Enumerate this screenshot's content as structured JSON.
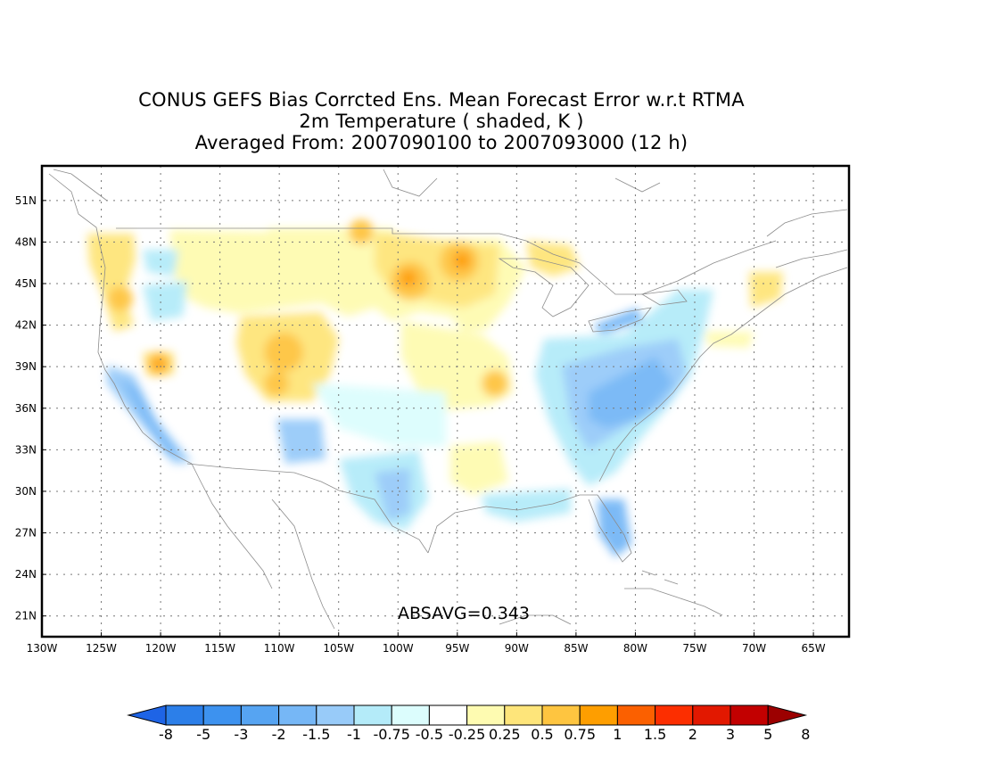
{
  "title": {
    "line1": "CONUS GEFS Bias Corrcted Ens. Mean Forecast Error w.r.t RTMA",
    "line2": "2m Temperature ( shaded, K )",
    "line3": "Averaged From: 2007090100 to 2007093000 (12 h)"
  },
  "map": {
    "lon_range": [
      -130,
      -62
    ],
    "lat_range": [
      19.5,
      53.5
    ],
    "lat_labels": [
      "51N",
      "48N",
      "45N",
      "42N",
      "39N",
      "36N",
      "33N",
      "30N",
      "27N",
      "24N",
      "21N"
    ],
    "lat_values": [
      51,
      48,
      45,
      42,
      39,
      36,
      33,
      30,
      27,
      24,
      21
    ],
    "lon_labels": [
      "130W",
      "125W",
      "120W",
      "115W",
      "110W",
      "105W",
      "100W",
      "95W",
      "90W",
      "85W",
      "80W",
      "75W",
      "70W",
      "65W"
    ],
    "lon_values": [
      -130,
      -125,
      -120,
      -115,
      -110,
      -105,
      -100,
      -95,
      -90,
      -85,
      -80,
      -75,
      -70,
      -65
    ],
    "grid": true,
    "absavg_label": "ABSAVG=0.343"
  },
  "colorbar": {
    "labels": [
      "-8",
      "-5",
      "-3",
      "-2",
      "-1.5",
      "-1",
      "-0.75",
      "-0.5",
      "-0.25",
      "0.25",
      "0.5",
      "0.75",
      "1",
      "1.5",
      "2",
      "3",
      "5",
      "8"
    ],
    "colors": [
      "#1e64e6",
      "#2c7fe9",
      "#3d92ef",
      "#56a4f2",
      "#76b7f6",
      "#98cbf9",
      "#b4ebf9",
      "#dcfdfd",
      "#ffffff",
      "#fefbb1",
      "#fee57a",
      "#fec540",
      "#fe9e00",
      "#fb6000",
      "#fc2e00",
      "#e21800",
      "#c20000",
      "#9c0000"
    ]
  },
  "colors": {
    "coast": "#8c8c8c",
    "grid": "#777777",
    "frame": "#000000"
  }
}
